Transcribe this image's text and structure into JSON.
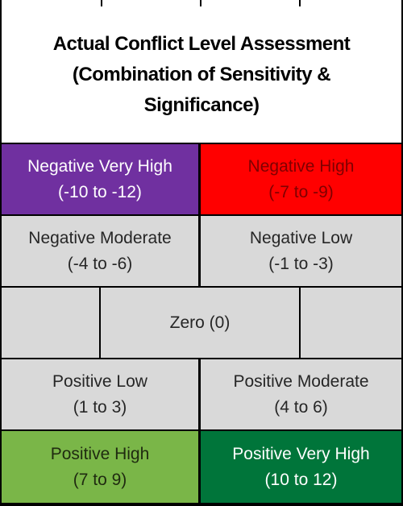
{
  "title": "Actual Conflict Level Assessment\n(Combination of Sensitivity &\nSignificance)",
  "colors": {
    "negative_very_high": "#7030a0",
    "negative_high": "#ff0000",
    "neutral": "#d9d9d9",
    "positive_high": "#7ab648",
    "positive_very_high": "#00753a"
  },
  "cells": {
    "negative_very_high": {
      "label": "Negative Very High",
      "range": "(-10 to -12)"
    },
    "negative_high": {
      "label": "Negative High",
      "range": "(-7 to -9)"
    },
    "negative_moderate": {
      "label": "Negative Moderate",
      "range": "(-4 to -6)"
    },
    "negative_low": {
      "label": "Negative Low",
      "range": "(-1 to -3)"
    },
    "zero": {
      "label": "Zero (0)"
    },
    "positive_low": {
      "label": "Positive Low",
      "range": "(1 to 3)"
    },
    "positive_moderate": {
      "label": "Positive Moderate",
      "range": "(4 to 6)"
    },
    "positive_high": {
      "label": "Positive High",
      "range": "(7 to 9)"
    },
    "positive_very_high": {
      "label": "Positive Very High",
      "range": "(10 to 12)"
    }
  }
}
